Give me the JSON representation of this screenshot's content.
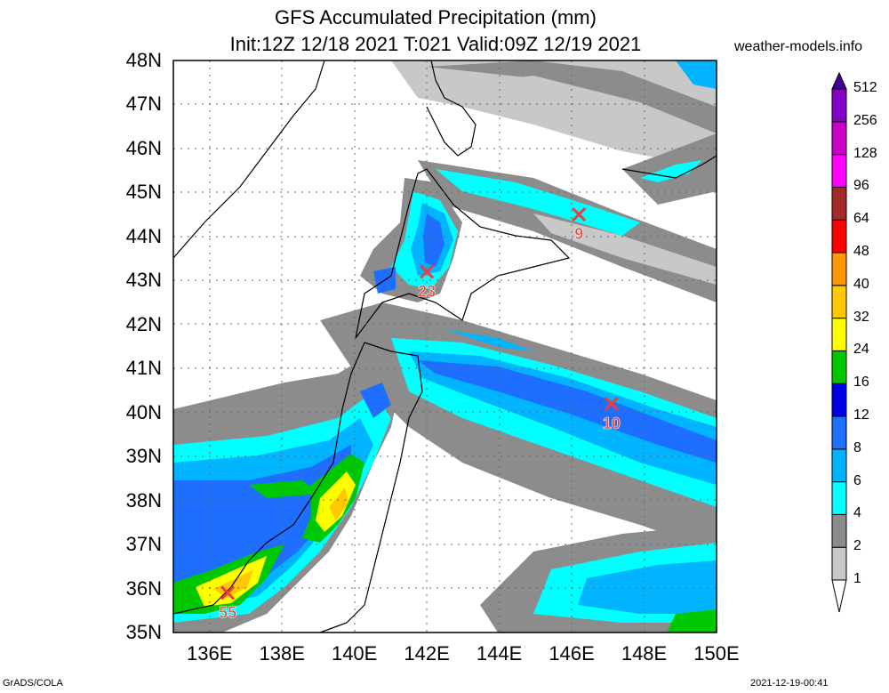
{
  "header": {
    "title_line1": "GFS Accumulated Precipitation (mm)",
    "title_line2": "Init:12Z 12/18 2021 T:021 Valid:09Z 12/19 2021",
    "website": "weather-models.info"
  },
  "map": {
    "lat_labels": [
      "48N",
      "47N",
      "46N",
      "45N",
      "44N",
      "43N",
      "42N",
      "41N",
      "40N",
      "39N",
      "38N",
      "37N",
      "36N",
      "35N"
    ],
    "lon_labels": [
      "136E",
      "138E",
      "140E",
      "142E",
      "144E",
      "146E",
      "148E",
      "150E"
    ],
    "lat_range": [
      35,
      48
    ],
    "lon_range": [
      135,
      150
    ],
    "grid": true,
    "max_markers": [
      {
        "label": "9",
        "lon": 146.2,
        "lat": 44.5
      },
      {
        "label": "23",
        "lon": 142.0,
        "lat": 43.2
      },
      {
        "label": "10",
        "lon": 147.1,
        "lat": 40.2
      },
      {
        "label": "55",
        "lon": 136.5,
        "lat": 35.9
      }
    ],
    "marker_color": "#e8403a"
  },
  "colorbar": {
    "levels": [
      "1",
      "2",
      "4",
      "6",
      "8",
      "12",
      "16",
      "24",
      "32",
      "40",
      "48",
      "64",
      "96",
      "128",
      "256",
      "512"
    ],
    "colors": [
      "#ffffff",
      "#c8c8c8",
      "#8c8c8c",
      "#00ffff",
      "#00b4ff",
      "#1e6eff",
      "#0000e6",
      "#00c800",
      "#ffff00",
      "#ffc800",
      "#ff9600",
      "#ff0000",
      "#a52a2a",
      "#ff00ff",
      "#c800c8",
      "#8200c8",
      "#460096"
    ]
  },
  "footer": {
    "left": "GrADS/COLA",
    "right": "2021-12-19-00:41"
  }
}
